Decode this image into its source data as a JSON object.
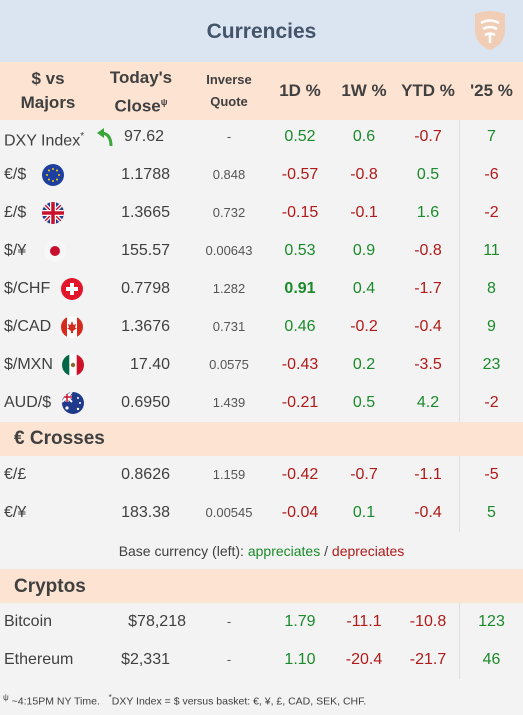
{
  "title": "Currencies",
  "header": {
    "pair_line1": "$ vs",
    "pair_line2": "Majors",
    "close_line1": "Today's",
    "close_line2": "Close",
    "close_mark": "ψ",
    "inverse_line1": "Inverse",
    "inverse_line2": "Quote",
    "d1": "1D %",
    "w1": "1W %",
    "ytd": "YTD %",
    "y25": "'25 %"
  },
  "majors": [
    {
      "pair": "DXY Index",
      "mark": "*",
      "icon": "green-curved-arrow-icon",
      "close": "97.62",
      "inverse": "-",
      "d1": "0.52",
      "w1": "0.6",
      "ytd": "-0.7",
      "y25": "7"
    },
    {
      "pair": "€/$",
      "icon": "eu-flag-icon",
      "close": "1.1788",
      "inverse": "0.848",
      "d1": "-0.57",
      "w1": "-0.8",
      "ytd": "0.5",
      "y25": "-6"
    },
    {
      "pair": "£/$",
      "icon": "uk-flag-icon",
      "close": "1.3665",
      "inverse": "0.732",
      "d1": "-0.15",
      "w1": "-0.1",
      "ytd": "1.6",
      "y25": "-2"
    },
    {
      "pair": "$/¥",
      "icon": "japan-flag-icon",
      "close": "155.57",
      "inverse": "0.00643",
      "d1": "0.53",
      "w1": "0.9",
      "ytd": "-0.8",
      "y25": "11"
    },
    {
      "pair": "$/CHF",
      "icon": "swiss-flag-icon",
      "close": "0.7798",
      "inverse": "1.282",
      "d1": "0.91",
      "w1": "0.4",
      "ytd": "-1.7",
      "y25": "8"
    },
    {
      "pair": "$/CAD",
      "icon": "canada-flag-icon",
      "close": "1.3676",
      "inverse": "0.731",
      "d1": "0.46",
      "w1": "-0.2",
      "ytd": "-0.4",
      "y25": "9"
    },
    {
      "pair": "$/MXN",
      "icon": "mexico-flag-icon",
      "close": "17.40",
      "inverse": "0.0575",
      "d1": "-0.43",
      "w1": "0.2",
      "ytd": "-3.5",
      "y25": "23"
    },
    {
      "pair": "AUD/$",
      "icon": "australia-flag-icon",
      "close": "0.6950",
      "inverse": "1.439",
      "d1": "-0.21",
      "w1": "0.5",
      "ytd": "4.2",
      "y25": "-2"
    }
  ],
  "crosses_title": "€ Crosses",
  "crosses": [
    {
      "pair": "€/£",
      "close": "0.8626",
      "inverse": "1.159",
      "d1": "-0.42",
      "w1": "-0.7",
      "ytd": "-1.1",
      "y25": "-5"
    },
    {
      "pair": "€/¥",
      "close": "183.38",
      "inverse": "0.00545",
      "d1": "-0.04",
      "w1": "0.1",
      "ytd": "-0.4",
      "y25": "5"
    }
  ],
  "legend": {
    "prefix": "Base currency (left): ",
    "up": "appreciates",
    "sep": " / ",
    "down": "depreciates"
  },
  "cryptos_title": "Cryptos",
  "cryptos": [
    {
      "pair": "Bitcoin",
      "close": "$78,218",
      "inverse": "-",
      "d1": "1.79",
      "w1": "-11.1",
      "ytd": "-10.8",
      "y25": "123"
    },
    {
      "pair": "Ethereum",
      "close": "$2,331",
      "inverse": "-",
      "d1": "1.10",
      "w1": "-20.4",
      "ytd": "-21.7",
      "y25": "46"
    }
  ],
  "footnote": {
    "mark1": "ψ",
    "time": " ~4:15PM NY Time.",
    "mark2": "*",
    "dxy": "DXY Index = $ versus basket: €, ¥, £, CAD, SEK, CHF."
  },
  "colors": {
    "positive": "#1a8a2a",
    "negative": "#b01a1a",
    "header_bg": "#fce3d2",
    "title_bg": "#dbe4f1"
  }
}
